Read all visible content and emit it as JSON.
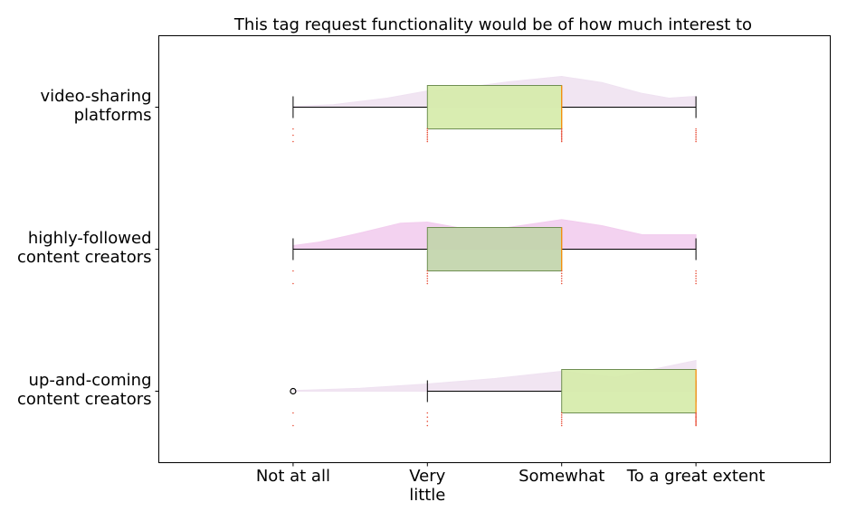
{
  "chart_data": {
    "type": "box",
    "title": "This tag request functionality would be of how much interest to",
    "x_tick_labels": [
      {
        "value": 1,
        "lines": [
          "Not at all"
        ]
      },
      {
        "value": 2,
        "lines": [
          "Very",
          "little"
        ]
      },
      {
        "value": 3,
        "lines": [
          "Somewhat"
        ]
      },
      {
        "value": 4,
        "lines": [
          "To a great extent"
        ]
      }
    ],
    "xlim": [
      0,
      5
    ],
    "categories": [
      {
        "lines": [
          "video-sharing",
          "platforms"
        ],
        "whisker_low": 1,
        "q1": 2,
        "median": 3,
        "q3": 3,
        "whisker_high": 4,
        "outliers": [],
        "box_color": "#d5eba8",
        "density_color": "#efe2f1",
        "density": [
          [
            1,
            0.02
          ],
          [
            1.3,
            0.07
          ],
          [
            1.7,
            0.25
          ],
          [
            2,
            0.45
          ],
          [
            2.3,
            0.55
          ],
          [
            2.6,
            0.7
          ],
          [
            3,
            0.85
          ],
          [
            3.3,
            0.68
          ],
          [
            3.6,
            0.38
          ],
          [
            3.8,
            0.25
          ],
          [
            4,
            0.3
          ]
        ],
        "points": {
          "1": 3,
          "2": 8,
          "3": 10,
          "4": 8
        }
      },
      {
        "lines": [
          "highly-followed",
          "content creators"
        ],
        "whisker_low": 1,
        "q1": 2,
        "median": 3,
        "q3": 3,
        "whisker_high": 4,
        "outliers": [],
        "box_color": "#c1d4aa",
        "density_color": "#f2cdee",
        "density": [
          [
            1,
            0.1
          ],
          [
            1.2,
            0.2
          ],
          [
            1.5,
            0.45
          ],
          [
            1.8,
            0.72
          ],
          [
            2,
            0.75
          ],
          [
            2.3,
            0.55
          ],
          [
            2.6,
            0.6
          ],
          [
            3,
            0.82
          ],
          [
            3.3,
            0.65
          ],
          [
            3.6,
            0.4
          ],
          [
            4,
            0.4
          ]
        ],
        "points": {
          "1": 2,
          "2": 6,
          "3": 6,
          "4": 6
        }
      },
      {
        "lines": [
          "up-and-coming",
          "content creators"
        ],
        "whisker_low": 2,
        "q1": 3,
        "median": 4,
        "q3": 4,
        "whisker_high": 4,
        "outliers": [
          1
        ],
        "box_color": "#d5eba8",
        "density_color": "#efe2f1",
        "density": [
          [
            1,
            0.02
          ],
          [
            1.5,
            0.08
          ],
          [
            2,
            0.2
          ],
          [
            2.5,
            0.35
          ],
          [
            3,
            0.55
          ],
          [
            3.4,
            0.38
          ],
          [
            3.7,
            0.62
          ],
          [
            4,
            0.85
          ]
        ],
        "points": {
          "1": 2,
          "2": 4,
          "3": 7,
          "4": 12
        }
      }
    ],
    "grid": false,
    "legend": "none"
  },
  "colors": {
    "whisker": "#000000",
    "median": "#ff8c00",
    "box_edge": "#6f8f52",
    "point": "#e8503a",
    "frame": "#000000"
  }
}
